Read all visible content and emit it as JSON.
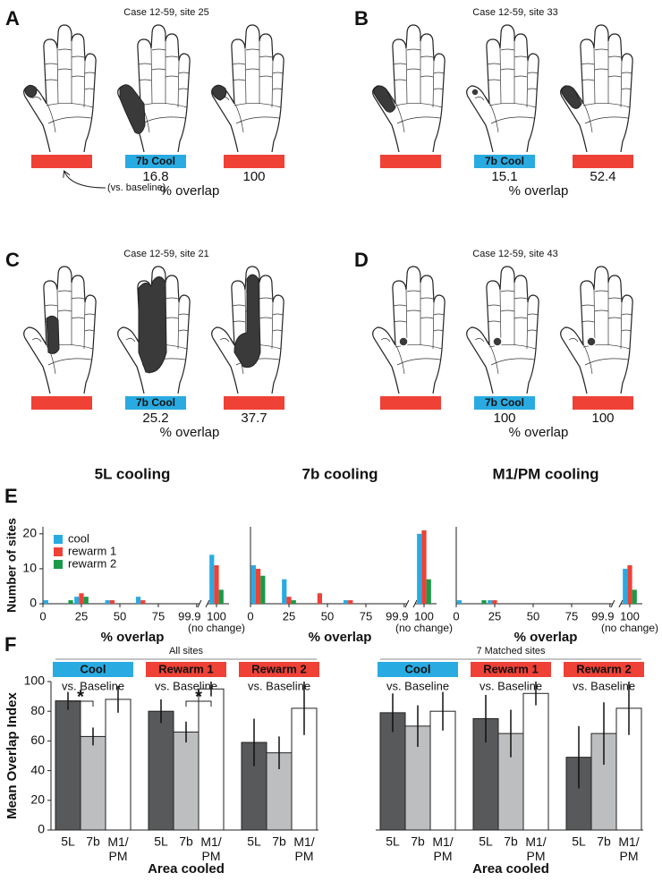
{
  "panels": [
    {
      "label": "A",
      "case": "Case 12-59, site 25",
      "condition": "7b Cool",
      "overlap": [
        16.8,
        100
      ],
      "overlap_label": "% overlap",
      "note": "(vs. baseline)"
    },
    {
      "label": "B",
      "case": "Case 12-59, site 33",
      "condition": "7b Cool",
      "overlap": [
        15.1,
        52.4
      ],
      "overlap_label": "% overlap"
    },
    {
      "label": "C",
      "case": "Case 12-59, site 21",
      "condition": "7b Cool",
      "overlap": [
        25.2,
        37.7
      ],
      "overlap_label": "% overlap"
    },
    {
      "label": "D",
      "case": "Case 12-59, site 43",
      "condition": "7b Cool",
      "overlap": [
        100,
        100
      ],
      "overlap_label": "% overlap"
    }
  ],
  "chart_data": [
    {
      "type": "bar",
      "panel": "E",
      "title": "5L cooling",
      "ylabel": "Number of sites",
      "xlabel": "% overlap",
      "x_note": "(no change)",
      "x": [
        5,
        15,
        25,
        35,
        45,
        55,
        65,
        75,
        85,
        95,
        100
      ],
      "series": [
        {
          "name": "cool",
          "color": "#29abe2",
          "values": [
            1,
            0,
            2,
            0,
            1,
            0,
            2,
            0,
            0,
            0,
            14
          ]
        },
        {
          "name": "rewarm 1",
          "color": "#ef4136",
          "values": [
            0,
            0,
            3,
            0,
            1,
            0,
            1,
            0,
            0,
            0,
            11
          ]
        },
        {
          "name": "rewarm 2",
          "color": "#1b9a48",
          "values": [
            0,
            1,
            2,
            0,
            0,
            0,
            0,
            0,
            0,
            0,
            4
          ]
        }
      ],
      "xlim": [
        0,
        100
      ],
      "xticks": [
        0,
        25,
        50,
        75,
        99.9,
        100
      ],
      "ylim": [
        0,
        22
      ],
      "yticks": [
        0,
        10,
        20
      ],
      "legend": "upper left"
    },
    {
      "type": "bar",
      "title": "7b cooling",
      "xlabel": "% overlap",
      "x_note": "(no change)",
      "x": [
        5,
        15,
        25,
        35,
        45,
        55,
        65,
        75,
        85,
        95,
        100
      ],
      "series": [
        {
          "color": "#29abe2",
          "values": [
            11,
            0,
            7,
            0,
            0,
            0,
            1,
            0,
            0,
            0,
            20
          ]
        },
        {
          "color": "#ef4136",
          "values": [
            10,
            0,
            2,
            0,
            3,
            0,
            1,
            0,
            0,
            0,
            21
          ]
        },
        {
          "color": "#1b9a48",
          "values": [
            8,
            0,
            1,
            0,
            0,
            0,
            0,
            0,
            0,
            0,
            7
          ]
        }
      ],
      "xlim": [
        0,
        100
      ],
      "xticks": [
        0,
        25,
        50,
        75,
        99.9,
        100
      ],
      "ylim": [
        0,
        22
      ]
    },
    {
      "type": "bar",
      "title": "M1/PM cooling",
      "xlabel": "% overlap",
      "x_note": "(no change)",
      "x": [
        5,
        15,
        25,
        35,
        45,
        55,
        65,
        75,
        85,
        95,
        100
      ],
      "series": [
        {
          "color": "#29abe2",
          "values": [
            1,
            0,
            1,
            0,
            0,
            0,
            0,
            0,
            0,
            0,
            10
          ]
        },
        {
          "color": "#ef4136",
          "values": [
            0,
            0,
            1,
            0,
            0,
            0,
            0,
            0,
            0,
            0,
            11
          ]
        },
        {
          "color": "#1b9a48",
          "values": [
            0,
            1,
            0,
            0,
            0,
            0,
            0,
            0,
            0,
            0,
            4
          ]
        }
      ],
      "xlim": [
        0,
        100
      ],
      "xticks": [
        0,
        25,
        50,
        75,
        99.9,
        100
      ],
      "ylim": [
        0,
        22
      ]
    },
    {
      "type": "grouped_bar",
      "panel": "F",
      "title": "All sites",
      "categories": [
        "5L",
        "7b",
        "M1/PM"
      ],
      "category_colors": [
        "#58595b",
        "#bcbec0",
        "#ffffff"
      ],
      "groups": [
        {
          "name": "Cool",
          "color": "#29abe2",
          "note": "vs. Baseline",
          "values": [
            87,
            63,
            88
          ],
          "errors": [
            6,
            6,
            9
          ]
        },
        {
          "name": "Rewarm 1",
          "color": "#ef4136",
          "note": "vs. Baseline",
          "values": [
            80,
            66,
            95
          ],
          "errors": [
            8,
            7,
            5
          ]
        },
        {
          "name": "Rewarm 2",
          "color": "#ef4136",
          "note": "vs. Baseline",
          "values": [
            59,
            52,
            82
          ],
          "errors": [
            16,
            11,
            18
          ]
        }
      ],
      "annotations": [
        {
          "group": "Cool",
          "categories": [
            "5L",
            "7b"
          ],
          "text": "*"
        },
        {
          "group": "Rewarm 1",
          "categories": [
            "7b",
            "M1/PM"
          ],
          "text": "*"
        }
      ],
      "ylabel": "Mean Overlap Index",
      "xlabel": "Area cooled",
      "ylim": [
        0,
        100
      ],
      "yticks": [
        0,
        20,
        40,
        60,
        80,
        100
      ]
    },
    {
      "type": "grouped_bar",
      "title": "7 Matched sites",
      "categories": [
        "5L",
        "7b",
        "M1/PM"
      ],
      "category_colors": [
        "#58595b",
        "#bcbec0",
        "#ffffff"
      ],
      "groups": [
        {
          "name": "Cool",
          "color": "#29abe2",
          "note": "vs. Baseline",
          "values": [
            79,
            70,
            80
          ],
          "errors": [
            13,
            14,
            13
          ]
        },
        {
          "name": "Rewarm 1",
          "color": "#ef4136",
          "note": "vs. Baseline",
          "values": [
            75,
            65,
            92
          ],
          "errors": [
            16,
            16,
            8
          ]
        },
        {
          "name": "Rewarm 2",
          "color": "#ef4136",
          "note": "vs. Baseline",
          "values": [
            49,
            65,
            82
          ],
          "errors": [
            21,
            21,
            18
          ]
        }
      ],
      "xlabel": "Area cooled",
      "ylim": [
        0,
        100
      ]
    }
  ]
}
